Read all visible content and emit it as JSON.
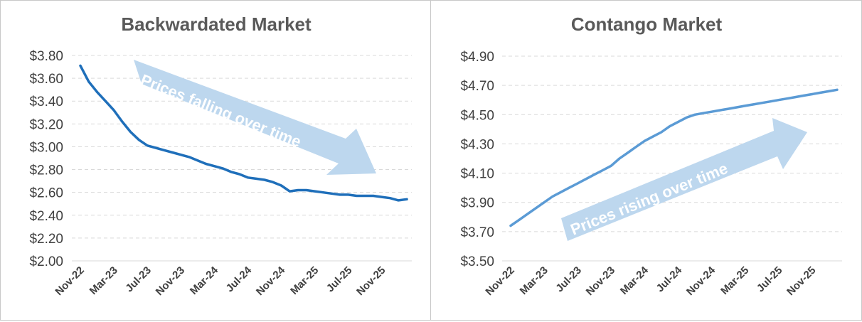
{
  "chart_data": [
    {
      "type": "line",
      "title": "Backwardated Market",
      "xlabel": "",
      "ylabel": "",
      "ylim": [
        2.0,
        3.8
      ],
      "yticks": [
        "$2.00",
        "$2.20",
        "$2.40",
        "$2.60",
        "$2.80",
        "$3.00",
        "$3.20",
        "$3.40",
        "$3.60",
        "$3.80"
      ],
      "ytick_values": [
        2.0,
        2.2,
        2.4,
        2.6,
        2.8,
        3.0,
        3.2,
        3.4,
        3.6,
        3.8
      ],
      "xticks": [
        "Nov-22",
        "Mar-23",
        "Jul-23",
        "Nov-23",
        "Mar-24",
        "Jul-24",
        "Nov-24",
        "Mar-25",
        "Jul-25",
        "Nov-25"
      ],
      "xtick_index": [
        0,
        4,
        8,
        12,
        16,
        20,
        24,
        28,
        32,
        36
      ],
      "grid": true,
      "annotation": "Prices falling over time",
      "series": [
        {
          "color": "#1f6fba",
          "values": [
            3.71,
            3.57,
            3.48,
            3.4,
            3.32,
            3.22,
            3.13,
            3.06,
            3.01,
            2.99,
            2.97,
            2.95,
            2.93,
            2.91,
            2.88,
            2.85,
            2.83,
            2.81,
            2.78,
            2.76,
            2.73,
            2.72,
            2.71,
            2.69,
            2.66,
            2.61,
            2.62,
            2.62,
            2.61,
            2.6,
            2.59,
            2.58,
            2.58,
            2.57,
            2.57,
            2.57,
            2.56,
            2.55,
            2.53,
            2.54
          ]
        }
      ]
    },
    {
      "type": "line",
      "title": "Contango Market",
      "xlabel": "",
      "ylabel": "",
      "ylim": [
        3.5,
        4.9
      ],
      "yticks": [
        "$3.50",
        "$3.70",
        "$3.90",
        "$4.10",
        "$4.30",
        "$4.50",
        "$4.70",
        "$4.90"
      ],
      "ytick_values": [
        3.5,
        3.7,
        3.9,
        4.1,
        4.3,
        4.5,
        4.7,
        4.9
      ],
      "xticks": [
        "Nov-22",
        "Mar-23",
        "Jul-23",
        "Nov-23",
        "Mar-24",
        "Jul-24",
        "Nov-24",
        "Mar-25",
        "Jul-25",
        "Nov-25"
      ],
      "xtick_index": [
        0,
        4,
        8,
        12,
        16,
        20,
        24,
        28,
        32,
        36
      ],
      "grid": true,
      "annotation": "Prices rising over time",
      "series": [
        {
          "color": "#5b9bd5",
          "values": [
            3.74,
            3.78,
            3.82,
            3.86,
            3.9,
            3.94,
            3.97,
            4.0,
            4.03,
            4.06,
            4.09,
            4.12,
            4.15,
            4.2,
            4.24,
            4.28,
            4.32,
            4.35,
            4.38,
            4.42,
            4.45,
            4.48,
            4.5,
            4.51,
            4.52,
            4.53,
            4.54,
            4.55,
            4.56,
            4.57,
            4.58,
            4.59,
            4.6,
            4.61,
            4.62,
            4.63,
            4.64,
            4.65,
            4.66,
            4.67
          ]
        }
      ]
    }
  ]
}
